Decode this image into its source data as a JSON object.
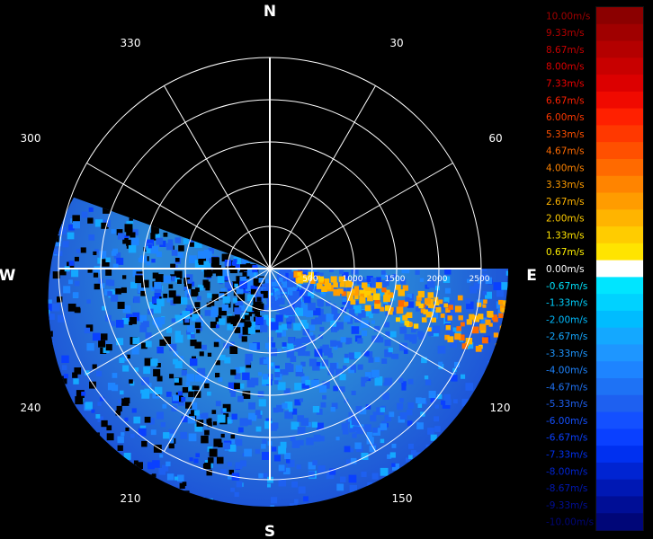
{
  "chart_data": {
    "type": "polar-sector",
    "title": "",
    "cardinals": [
      "N",
      "E",
      "S",
      "W"
    ],
    "azimuth_labels": [
      "30",
      "60",
      "120",
      "150",
      "210",
      "240",
      "300",
      "330"
    ],
    "range_labels": [
      "500",
      "1000",
      "1500",
      "2000",
      "2500"
    ],
    "range_rings": [
      500,
      1000,
      1500,
      2000,
      2500
    ],
    "range_max": 2500,
    "spoke_angles_deg": [
      0,
      30,
      60,
      90,
      120,
      150,
      180,
      210,
      240,
      270,
      300,
      330
    ],
    "data_sector_deg": [
      90,
      290
    ],
    "grid": true,
    "colorbar": {
      "position": "right",
      "unit": "m/s",
      "labels": [
        "10.00m/s",
        "9.33m/s",
        "8.67m/s",
        "8.00m/s",
        "7.33m/s",
        "6.67m/s",
        "6.00m/s",
        "5.33m/s",
        "4.67m/s",
        "4.00m/s",
        "3.33m/s",
        "2.67m/s",
        "2.00m/s",
        "1.33m/s",
        "0.67m/s",
        "0.00m/s",
        "-0.67m/s",
        "-1.33m/s",
        "-2.00m/s",
        "-2.67m/s",
        "-3.33m/s",
        "-4.00m/s",
        "-4.67m/s",
        "-5.33m/s",
        "-6.00m/s",
        "-6.67m/s",
        "-7.33m/s",
        "-8.00m/s",
        "-8.67m/s",
        "-9.33m/s",
        "-10.00m/s"
      ],
      "colors": [
        "#8b0000",
        "#a00000",
        "#b40000",
        "#c80000",
        "#dc0000",
        "#f00a00",
        "#ff2000",
        "#ff3800",
        "#ff5000",
        "#ff6a00",
        "#ff8400",
        "#ff9c00",
        "#ffb400",
        "#ffcc00",
        "#ffe400",
        "#ffffff",
        "#00e5ff",
        "#00d2ff",
        "#00bcff",
        "#14a8ff",
        "#1e96ff",
        "#1e84ff",
        "#1e72f5",
        "#1e60f0",
        "#1450ff",
        "#0a40ff",
        "#0030f0",
        "#0024d2",
        "#0018b4",
        "#000e96",
        "#000678"
      ],
      "label_colors": [
        "#a00000",
        "#b40000",
        "#c80000",
        "#dc0000",
        "#f00000",
        "#ff2000",
        "#ff3800",
        "#ff5000",
        "#ff6a00",
        "#ff8400",
        "#ff9c00",
        "#ffb400",
        "#ffcc00",
        "#ffe400",
        "#fff000",
        "#ffffff",
        "#00e5ff",
        "#00d2ff",
        "#00bcff",
        "#14a8ff",
        "#1e96ff",
        "#1e84ff",
        "#1e72f5",
        "#1e60f0",
        "#1450ff",
        "#0a40ff",
        "#0030f0",
        "#0024d2",
        "#0018b4",
        "#000e96",
        "#000678"
      ]
    }
  }
}
